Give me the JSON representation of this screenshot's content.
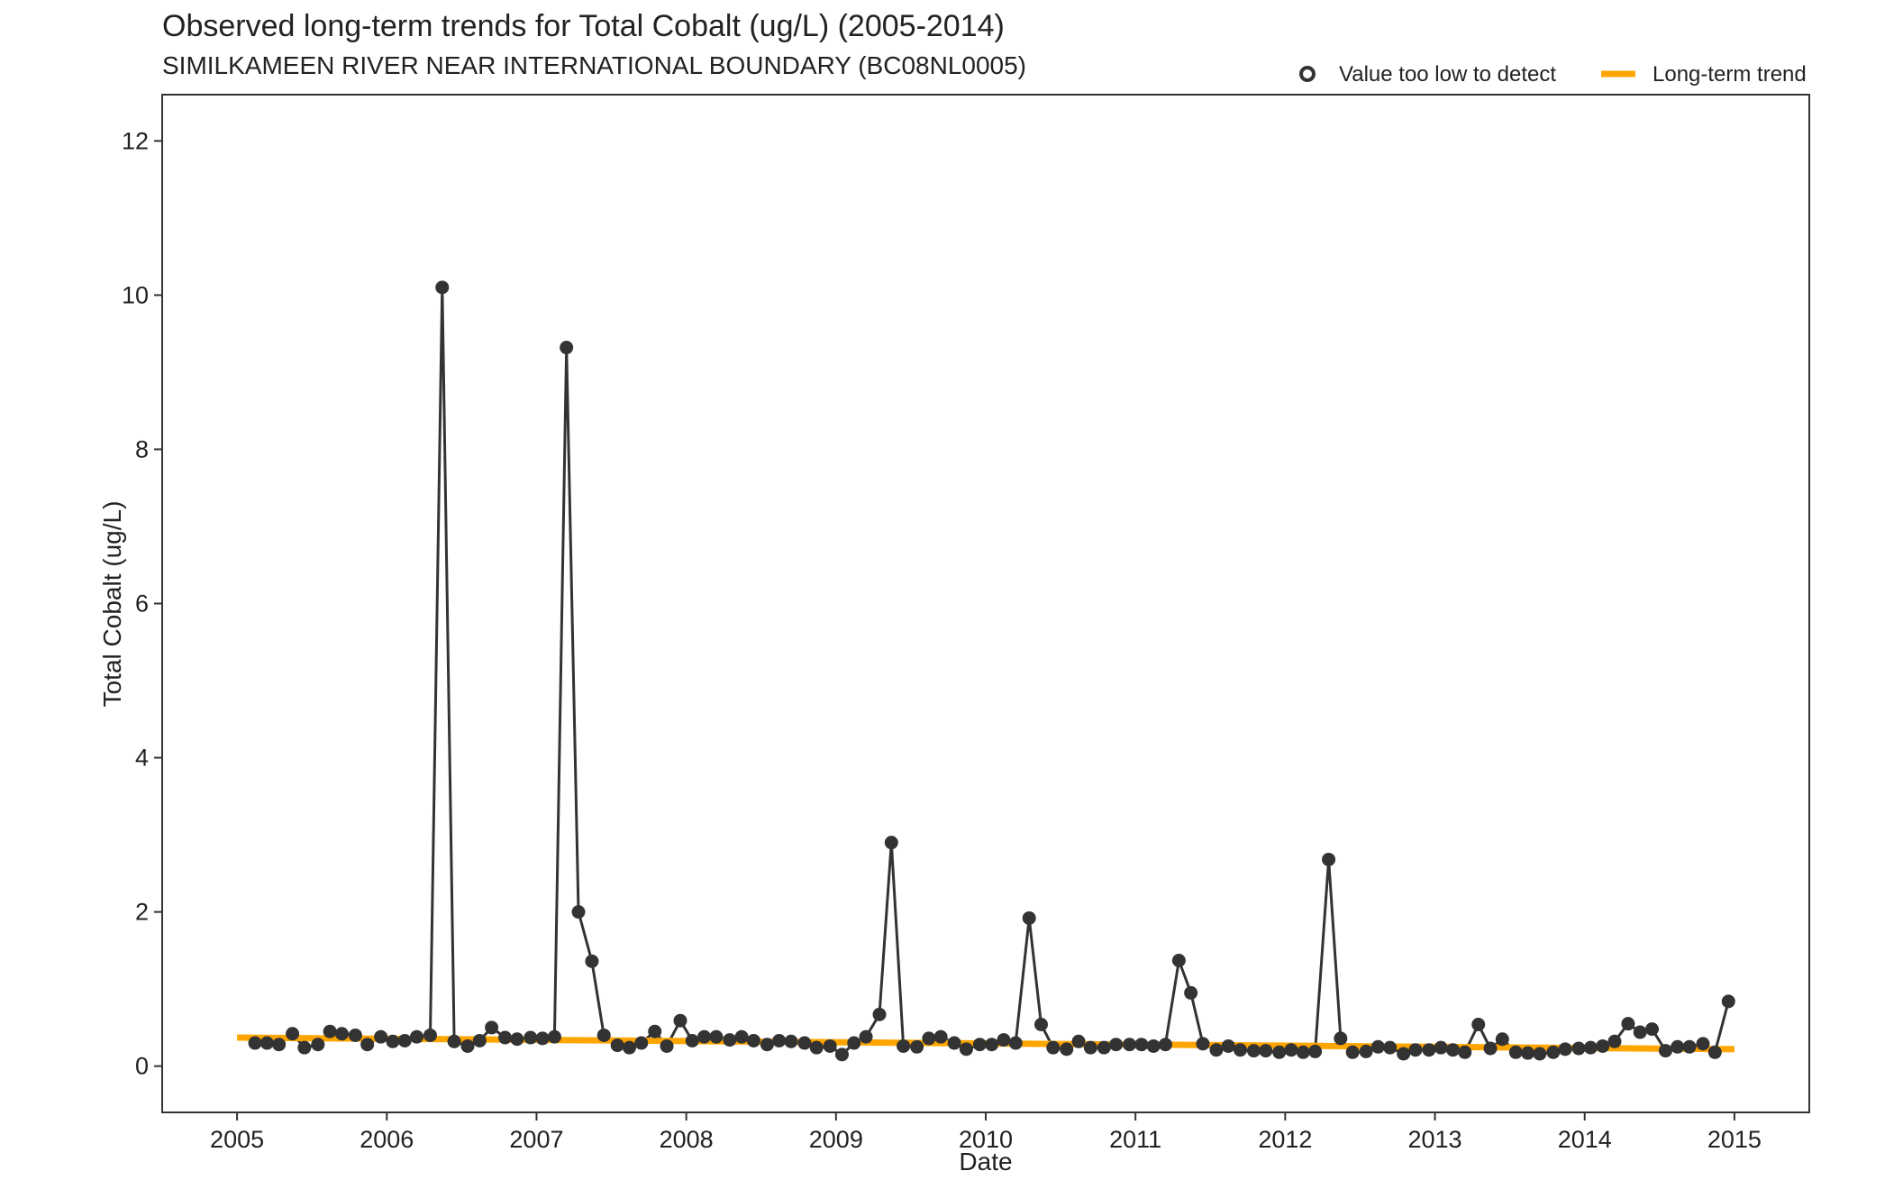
{
  "chart_data": {
    "type": "scatter",
    "title": "Observed long-term trends for Total Cobalt (ug/L) (2005-2014)",
    "subtitle": "SIMILKAMEEN RIVER NEAR INTERNATIONAL BOUNDARY (BC08NL0005)",
    "xlabel": "Date",
    "ylabel": "Total Cobalt (ug/L)",
    "xlim": [
      2004.5,
      2015.5
    ],
    "ylim": [
      -0.6,
      12.6
    ],
    "xticks": [
      2005,
      2006,
      2007,
      2008,
      2009,
      2010,
      2011,
      2012,
      2013,
      2014,
      2015
    ],
    "yticks": [
      0,
      2,
      4,
      6,
      8,
      10,
      12
    ],
    "grid": false,
    "legend_position": "top-right",
    "legend": {
      "nondetect_label": "Value too low to detect",
      "trend_label": "Long-term trend"
    },
    "colors": {
      "points": "#333333",
      "line": "#333333",
      "trend": "#FFA500",
      "axis": "#333333"
    },
    "series": [
      {
        "kind": "observed",
        "x": [
          2005.12,
          2005.2,
          2005.28,
          2005.37,
          2005.45,
          2005.54,
          2005.62,
          2005.7,
          2005.79,
          2005.87,
          2005.96,
          2006.04,
          2006.12,
          2006.2,
          2006.29,
          2006.37,
          2006.45,
          2006.54,
          2006.62,
          2006.7,
          2006.79,
          2006.87,
          2006.96,
          2007.04,
          2007.12,
          2007.2,
          2007.28,
          2007.37,
          2007.45,
          2007.54,
          2007.62,
          2007.7,
          2007.79,
          2007.87,
          2007.96,
          2008.04,
          2008.12,
          2008.2,
          2008.29,
          2008.37,
          2008.45,
          2008.54,
          2008.62,
          2008.7,
          2008.79,
          2008.87,
          2008.96,
          2009.04,
          2009.12,
          2009.2,
          2009.29,
          2009.37,
          2009.45,
          2009.54,
          2009.62,
          2009.7,
          2009.79,
          2009.87,
          2009.96,
          2010.04,
          2010.12,
          2010.2,
          2010.29,
          2010.37,
          2010.45,
          2010.54,
          2010.62,
          2010.7,
          2010.79,
          2010.87,
          2010.96,
          2011.04,
          2011.12,
          2011.2,
          2011.29,
          2011.37,
          2011.45,
          2011.54,
          2011.62,
          2011.7,
          2011.79,
          2011.87,
          2011.96,
          2012.04,
          2012.12,
          2012.2,
          2012.29,
          2012.37,
          2012.45,
          2012.54,
          2012.62,
          2012.7,
          2012.79,
          2012.87,
          2012.96,
          2013.04,
          2013.12,
          2013.2,
          2013.29,
          2013.37,
          2013.45,
          2013.54,
          2013.62,
          2013.7,
          2013.79,
          2013.87,
          2013.96,
          2014.04,
          2014.12,
          2014.2,
          2014.29,
          2014.37,
          2014.45,
          2014.54,
          2014.62,
          2014.7,
          2014.79,
          2014.87,
          2014.96
        ],
        "y": [
          0.3,
          0.3,
          0.28,
          0.42,
          0.24,
          0.28,
          0.45,
          0.42,
          0.4,
          0.28,
          0.38,
          0.32,
          0.33,
          0.38,
          0.4,
          10.1,
          0.32,
          0.26,
          0.33,
          0.5,
          0.37,
          0.35,
          0.37,
          0.36,
          0.38,
          9.32,
          2.0,
          1.36,
          0.4,
          0.27,
          0.24,
          0.3,
          0.45,
          0.26,
          0.59,
          0.33,
          0.38,
          0.38,
          0.34,
          0.38,
          0.33,
          0.28,
          0.33,
          0.32,
          0.3,
          0.24,
          0.26,
          0.15,
          0.3,
          0.38,
          0.67,
          2.9,
          0.26,
          0.25,
          0.36,
          0.38,
          0.3,
          0.22,
          0.28,
          0.28,
          0.34,
          0.3,
          1.92,
          0.54,
          0.24,
          0.22,
          0.32,
          0.24,
          0.24,
          0.28,
          0.28,
          0.28,
          0.26,
          0.28,
          1.37,
          0.95,
          0.29,
          0.21,
          0.26,
          0.21,
          0.2,
          0.2,
          0.18,
          0.21,
          0.18,
          0.19,
          2.68,
          0.36,
          0.18,
          0.19,
          0.25,
          0.24,
          0.16,
          0.21,
          0.21,
          0.24,
          0.21,
          0.18,
          0.54,
          0.23,
          0.35,
          0.18,
          0.17,
          0.16,
          0.18,
          0.22,
          0.23,
          0.24,
          0.26,
          0.32,
          0.55,
          0.44,
          0.48,
          0.2,
          0.25,
          0.25,
          0.29,
          0.18,
          0.84
        ]
      },
      {
        "kind": "trend",
        "x": [
          2005.0,
          2015.0
        ],
        "y": [
          0.37,
          0.22
        ]
      }
    ]
  }
}
